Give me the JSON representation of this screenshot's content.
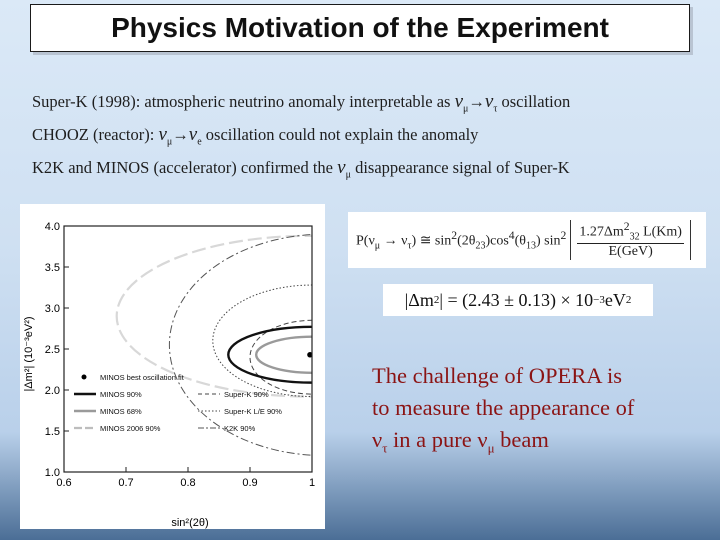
{
  "title": "Physics Motivation of the Experiment",
  "bullets": {
    "line1": {
      "pre": "Super-K (1998): atmospheric neutrino anomaly interpretable as ",
      "nu_a": "ν",
      "sub_a": "μ",
      "arrow": "→",
      "nu_b": "ν",
      "sub_b": "τ",
      "post": " oscillation"
    },
    "line2": {
      "pre": "CHOOZ (reactor): ",
      "nu_a": "ν",
      "sub_a": "μ",
      "arrow": "→",
      "nu_b": "ν",
      "sub_b": "e",
      "post": " oscillation could not explain the anomaly"
    },
    "line3": {
      "pre": "K2K and MINOS (accelerator) confirmed the ",
      "nu": "ν",
      "sub": "μ",
      "post": " disappearance signal of Super-K"
    }
  },
  "formula1": {
    "lhs": "P(ν",
    "lhs_sub1": "μ",
    "arrow": " → ν",
    "lhs_sub2": "τ",
    "eq": ") ≅ sin",
    "sup1": "2",
    "t1": "(2θ",
    "sub_a": "23",
    "t2": ")cos",
    "sup2": "4",
    "t3": "(θ",
    "sub_b": "13",
    "t4": ") sin",
    "sup3": "2",
    "num": "1.27Δm",
    "num_sup": "2",
    "num_sub": "32",
    "num_tail": " L(Km)",
    "den": "E(GeV)"
  },
  "formula2": {
    "text": "|Δm",
    "sup": "2",
    "mid": "| = (2.43 ± 0.13) × 10",
    "exp": "−3",
    "unit": " eV",
    "unit_sup": "2"
  },
  "challenge": {
    "line1": "The challenge of OPERA is",
    "line2": "to measure the appearance of",
    "line3a": "ν",
    "line3a_sub": "τ",
    "line3b": " in a pure ν",
    "line3b_sub": "μ",
    "line3c": " beam"
  },
  "chart_data": {
    "type": "contour",
    "xlabel": "sin²(2θ)",
    "ylabel": "|Δm²| (10⁻³eV²)",
    "xlim": [
      0.6,
      1.0
    ],
    "ylim": [
      1.0,
      4.0
    ],
    "xticks": [
      "0.6",
      "0.7",
      "0.8",
      "0.9",
      "1"
    ],
    "yticks": [
      "1.0",
      "1.5",
      "2.0",
      "2.5",
      "3.0",
      "3.5",
      "4.0"
    ],
    "best_fit": {
      "x": 1.0,
      "y": 2.43
    },
    "legend": [
      {
        "label": "MINOS best oscillation fit",
        "style": "dot"
      },
      {
        "label": "MINOS 90%",
        "style": "thick-black"
      },
      {
        "label": "MINOS 68%",
        "style": "thick-gray"
      },
      {
        "label": "MINOS 2006 90%",
        "style": "gray-long-dash"
      },
      {
        "label": "Super-K 90%",
        "style": "dashed"
      },
      {
        "label": "Super-K L/E 90%",
        "style": "dotted"
      },
      {
        "label": "K2K 90%",
        "style": "dash-dot"
      }
    ],
    "contours": [
      {
        "name": "MINOS 2006 90%",
        "color": "#d8d8d8",
        "cx": 0.995,
        "cy": 2.9,
        "rx": 0.31,
        "ry": 0.98
      },
      {
        "name": "K2K 90%",
        "color": "#555555",
        "cx": 1.02,
        "cy": 2.55,
        "rx": 0.25,
        "ry": 1.35
      },
      {
        "name": "Super-K 90%",
        "color": "#444444",
        "cx": 1.0,
        "cy": 2.4,
        "rx": 0.1,
        "ry": 0.45
      },
      {
        "name": "Super-K L/E 90%",
        "color": "#444444",
        "cx": 1.0,
        "cy": 2.6,
        "rx": 0.16,
        "ry": 0.68
      },
      {
        "name": "MINOS 90%",
        "color": "#111111",
        "cx": 1.0,
        "cy": 2.43,
        "rx": 0.135,
        "ry": 0.34
      },
      {
        "name": "MINOS 68%",
        "color": "#9a9a9a",
        "cx": 1.0,
        "cy": 2.43,
        "rx": 0.09,
        "ry": 0.22
      }
    ]
  }
}
